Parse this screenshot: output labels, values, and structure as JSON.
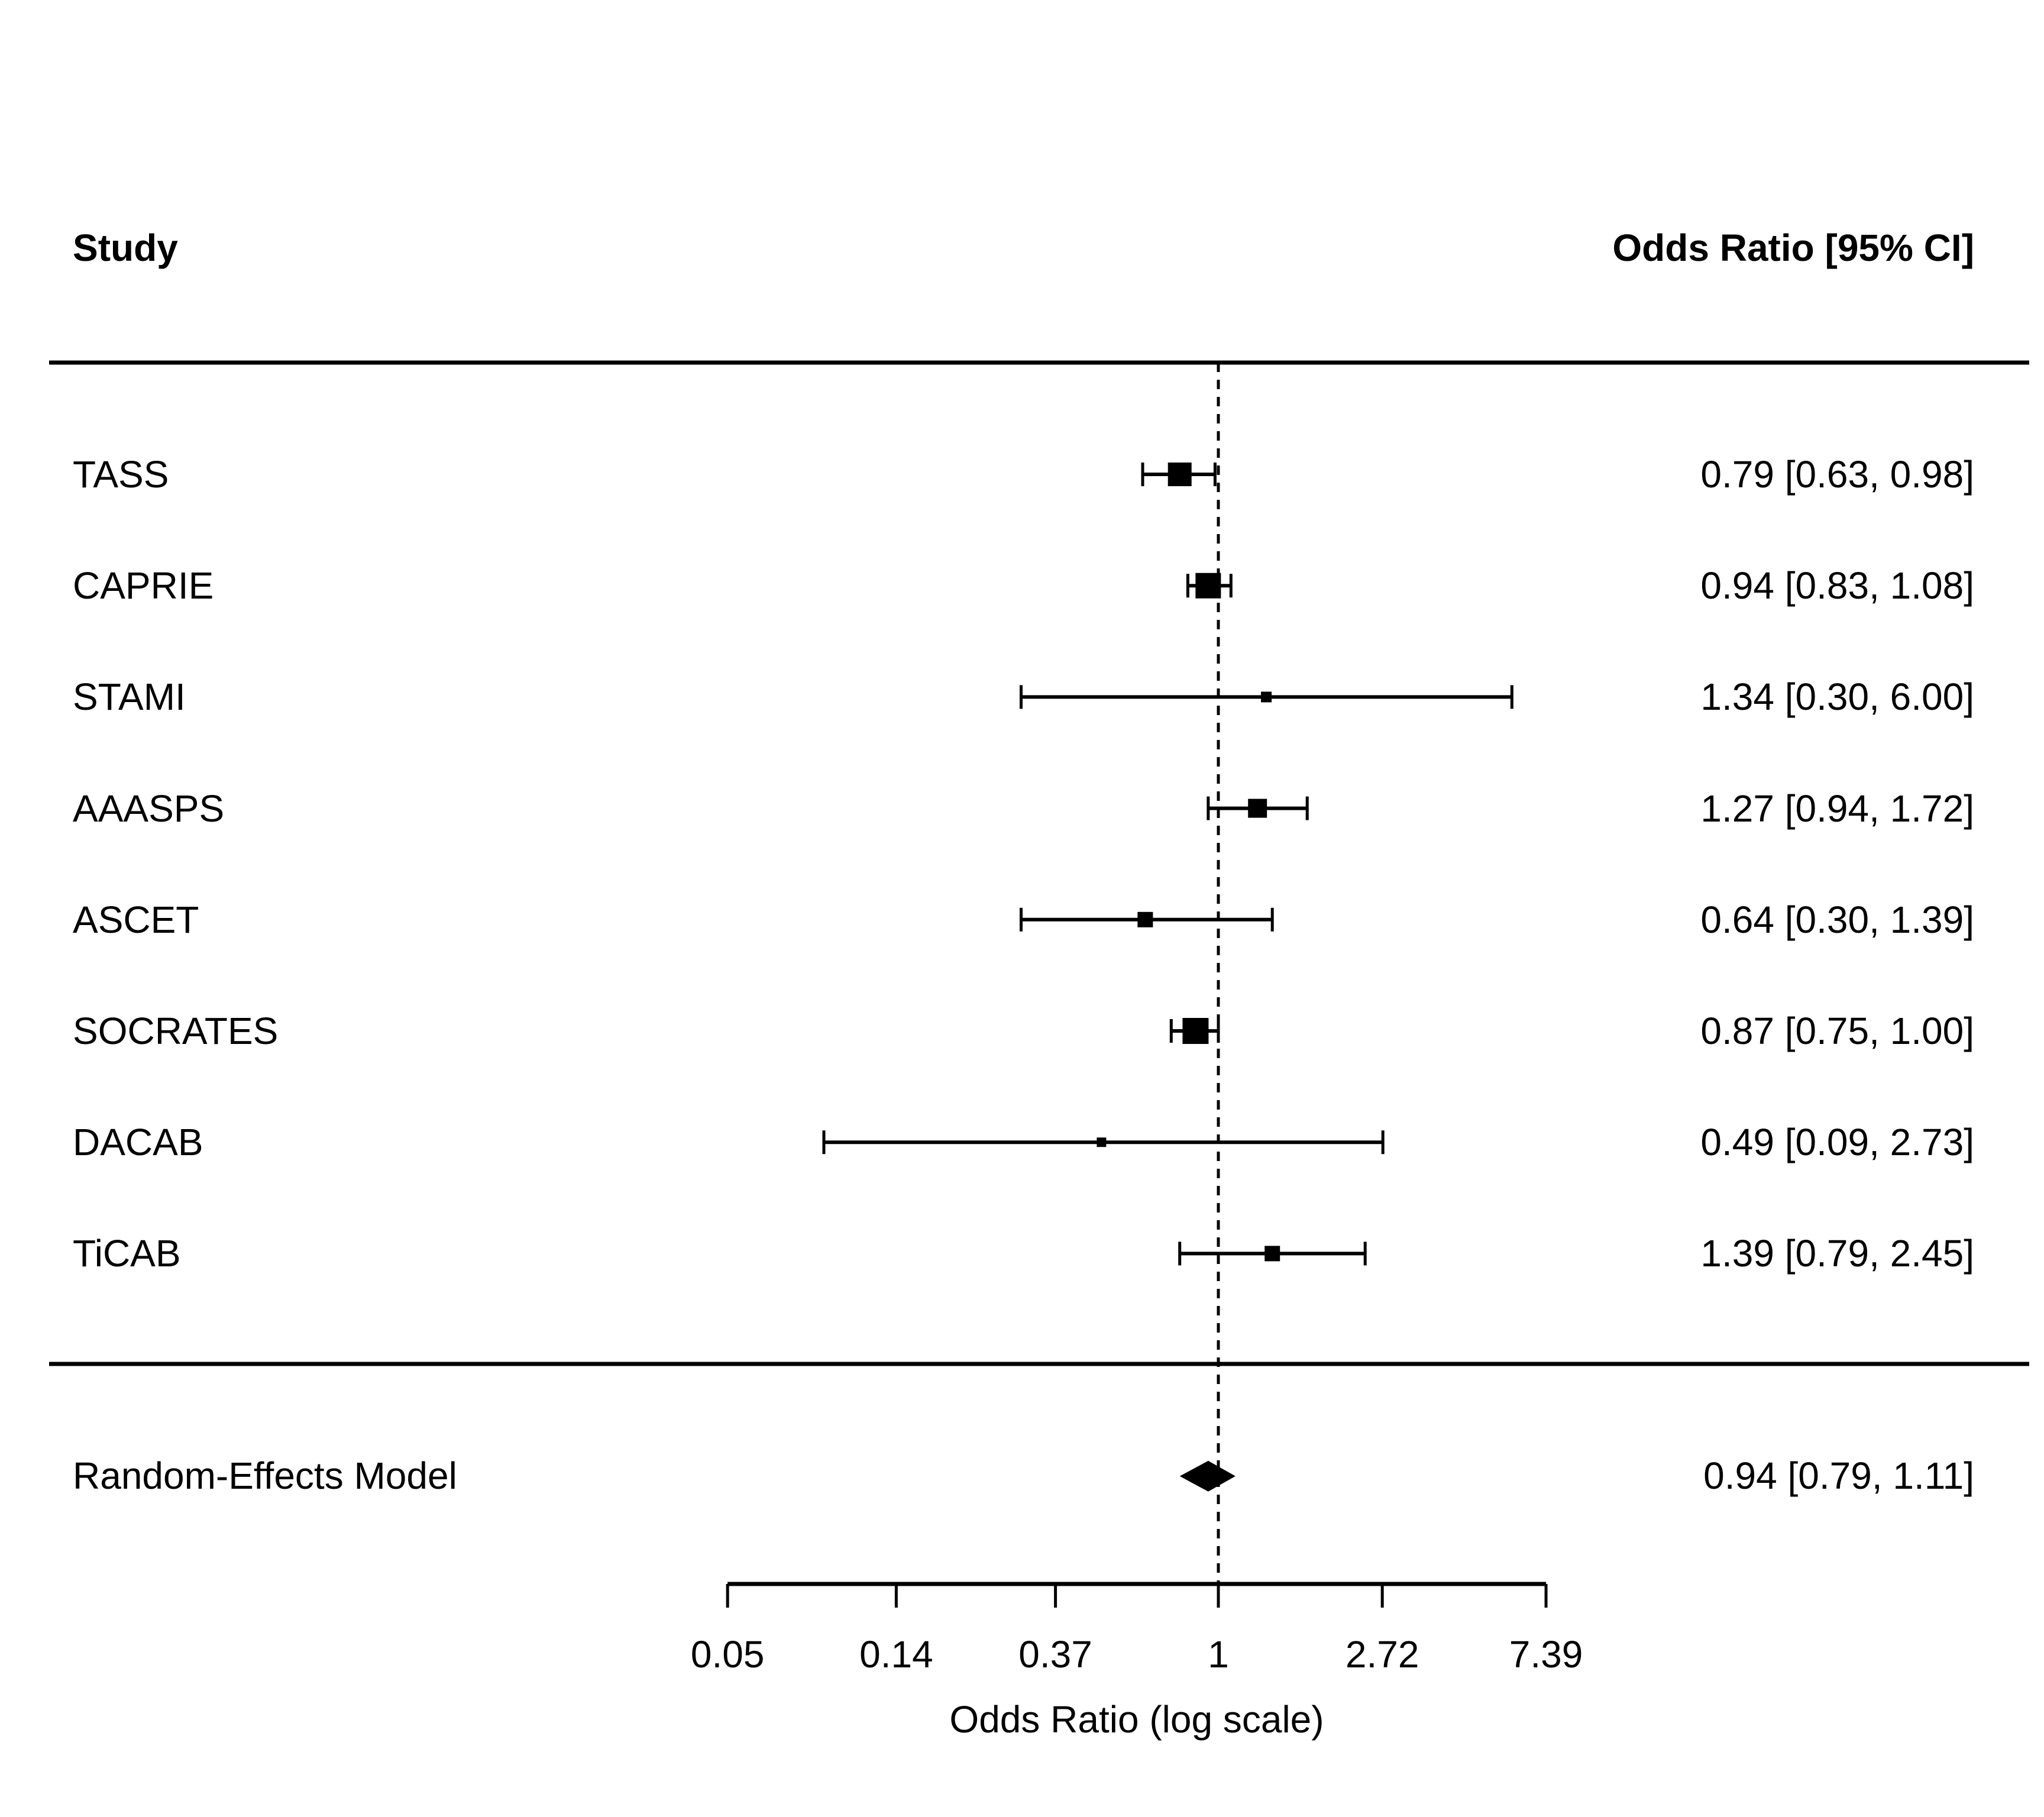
{
  "header": {
    "study_col": "Study",
    "or_col": "Odds Ratio [95% CI]"
  },
  "colors": {
    "foreground": "#000000",
    "background": "#ffffff"
  },
  "chart_data": {
    "type": "forest",
    "title": "",
    "xlabel": "Odds Ratio (log scale)",
    "x_axis": {
      "scale": "log",
      "ticks": [
        0.05,
        0.14,
        0.37,
        1,
        2.72,
        7.39
      ],
      "tick_labels": [
        "0.05",
        "0.14",
        "0.37",
        "1",
        "2.72",
        "7.39"
      ],
      "range": [
        0.05,
        7.39
      ],
      "reference_line": 1
    },
    "studies": [
      {
        "name": "TASS",
        "or": 0.79,
        "ci_low": 0.63,
        "ci_high": 0.98,
        "or_label": "0.79 [0.63, 0.98]",
        "square_size": 40
      },
      {
        "name": "CAPRIE",
        "or": 0.94,
        "ci_low": 0.83,
        "ci_high": 1.08,
        "or_label": "0.94 [0.83, 1.08]",
        "square_size": 43
      },
      {
        "name": "STAMI",
        "or": 1.34,
        "ci_low": 0.3,
        "ci_high": 6.0,
        "or_label": "1.34 [0.30, 6.00]",
        "square_size": 18
      },
      {
        "name": "AAASPS",
        "or": 1.27,
        "ci_low": 0.94,
        "ci_high": 1.72,
        "or_label": "1.27 [0.94, 1.72]",
        "square_size": 32
      },
      {
        "name": "ASCET",
        "or": 0.64,
        "ci_low": 0.3,
        "ci_high": 1.39,
        "or_label": "0.64 [0.30, 1.39]",
        "square_size": 26
      },
      {
        "name": "SOCRATES",
        "or": 0.87,
        "ci_low": 0.75,
        "ci_high": 1.0,
        "or_label": "0.87 [0.75, 1.00]",
        "square_size": 44
      },
      {
        "name": "DACAB",
        "or": 0.49,
        "ci_low": 0.09,
        "ci_high": 2.73,
        "or_label": "0.49 [0.09, 2.73]",
        "square_size": 16
      },
      {
        "name": "TiCAB",
        "or": 1.39,
        "ci_low": 0.79,
        "ci_high": 2.45,
        "or_label": "1.39 [0.79, 2.45]",
        "square_size": 26
      }
    ],
    "summary": {
      "name": "Random-Effects Model",
      "or": 0.94,
      "ci_low": 0.79,
      "ci_high": 1.11,
      "or_label": "0.94 [0.79, 1.11]"
    },
    "legend": null,
    "grid": false
  }
}
